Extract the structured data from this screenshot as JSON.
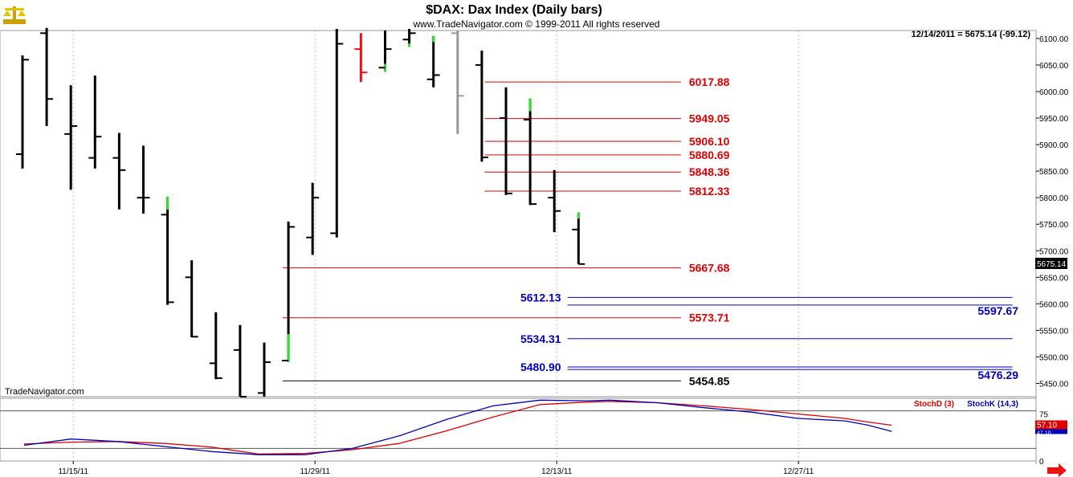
{
  "header": {
    "title": "$DAX:  Dax Index  (Daily bars)",
    "subtitle": "www.TradeNavigator.com © 1999-2011 All rights reserved",
    "info": "12/14/2011 = 5675.14 (-99.12)",
    "watermark": "TradeNavigator.com"
  },
  "colors": {
    "up": "#33dd33",
    "down": "#ee1111",
    "bar": "#000000",
    "pending": "#999999",
    "red_level": "#dd0000",
    "blue_level": "#0000bb",
    "black_level": "#000000"
  },
  "chart_data": [
    {
      "type": "ohlc",
      "y_ticks": [
        "6100.00",
        "6050.00",
        "6000.00",
        "5950.00",
        "5900.00",
        "5850.00",
        "5800.00",
        "5750.00",
        "5700.00",
        "5650.00",
        "5600.00",
        "5550.00",
        "5500.00",
        "5450.00"
      ],
      "ylim": [
        5425,
        6115
      ],
      "x_ticks": [
        "11/15/11",
        "11/29/11",
        "12/13/11",
        "12/27/11"
      ],
      "last_price_label": "5675.14",
      "bars": [
        {
          "o": 5882,
          "h": 6068,
          "l": 5855,
          "c": 6060,
          "color": "bar"
        },
        {
          "o": 6110,
          "h": 6120,
          "l": 5935,
          "c": 5986,
          "color": "bar"
        },
        {
          "o": 5920,
          "h": 6012,
          "l": 5815,
          "c": 5935,
          "color": "bar"
        },
        {
          "o": 5875,
          "h": 6030,
          "l": 5855,
          "c": 5915,
          "color": "bar"
        },
        {
          "o": 5875,
          "h": 5922,
          "l": 5778,
          "c": 5852,
          "color": "bar"
        },
        {
          "o": 5800,
          "h": 5898,
          "l": 5770,
          "c": 5800,
          "color": "bar"
        },
        {
          "o": 5768,
          "h": 5802,
          "l": 5598,
          "c": 5603,
          "color": "bar",
          "h_color": "up"
        },
        {
          "o": 5650,
          "h": 5682,
          "l": 5537,
          "c": 5538,
          "color": "bar"
        },
        {
          "o": 5488,
          "h": 5584,
          "l": 5458,
          "c": 5460,
          "color": "bar"
        },
        {
          "o": 5513,
          "h": 5560,
          "l": 5425,
          "c": 5425,
          "color": "bar"
        },
        {
          "o": 5432,
          "h": 5527,
          "l": 5425,
          "c": 5490,
          "color": "bar"
        },
        {
          "o": 5493,
          "h": 5755,
          "l": 5490,
          "c": 5745,
          "color": "bar",
          "l_color": "up"
        },
        {
          "o": 5725,
          "h": 5828,
          "l": 5692,
          "c": 5800,
          "color": "bar"
        },
        {
          "o": 5733,
          "h": 6118,
          "l": 5725,
          "c": 6090,
          "color": "bar"
        },
        {
          "o": 6080,
          "h": 6110,
          "l": 6018,
          "c": 6036,
          "color": "down"
        },
        {
          "o": 6045,
          "h": 6115,
          "l": 6037,
          "c": 6080,
          "color": "bar",
          "l_color": "up"
        },
        {
          "o": 6098,
          "h": 6118,
          "l": 6084,
          "c": 6110,
          "color": "bar",
          "l_color": "up"
        },
        {
          "o": 6023,
          "h": 6105,
          "l": 6008,
          "c": 6031,
          "color": "bar",
          "h_color": "up"
        },
        {
          "o": 6110,
          "h": 6115,
          "l": 5920,
          "c": 5992,
          "color": "pending"
        },
        {
          "o": 6050,
          "h": 6077,
          "l": 5868,
          "c": 5876,
          "color": "bar"
        },
        {
          "o": 5950,
          "h": 6008,
          "l": 5805,
          "c": 5808,
          "color": "bar"
        },
        {
          "o": 5947,
          "h": 5987,
          "l": 5786,
          "c": 5788,
          "color": "bar",
          "h_color": "up"
        },
        {
          "o": 5800,
          "h": 5852,
          "l": 5735,
          "c": 5775,
          "color": "bar"
        },
        {
          "o": 5740,
          "h": 5772,
          "l": 5675,
          "c": 5675,
          "color": "bar",
          "h_color": "up"
        }
      ],
      "levels": [
        {
          "value": 6017.88,
          "label": "6017.88",
          "color": "red_level",
          "x1": 0.46,
          "x2": 0.665,
          "label_at": "end"
        },
        {
          "value": 5949.05,
          "label": "5949.05",
          "color": "red_level",
          "x1": 0.46,
          "x2": 0.665,
          "label_at": "end"
        },
        {
          "value": 5906.1,
          "label": "5906.10",
          "color": "red_level",
          "x1": 0.46,
          "x2": 0.665,
          "label_at": "end"
        },
        {
          "value": 5880.69,
          "label": "5880.69",
          "color": "red_level",
          "x1": 0.46,
          "x2": 0.665,
          "label_at": "end"
        },
        {
          "value": 5848.36,
          "label": "5848.36",
          "color": "red_level",
          "x1": 0.46,
          "x2": 0.665,
          "label_at": "end"
        },
        {
          "value": 5812.33,
          "label": "5812.33",
          "color": "red_level",
          "x1": 0.46,
          "x2": 0.665,
          "label_at": "end"
        },
        {
          "value": 5667.68,
          "label": "5667.68",
          "color": "red_level",
          "x1": 0.265,
          "x2": 0.665,
          "label_at": "end"
        },
        {
          "value": 5612.13,
          "label": "5612.13",
          "color": "blue_level",
          "x1": 0.54,
          "x2": 0.985,
          "label_at": "start"
        },
        {
          "value": 5597.67,
          "label": "5597.67",
          "color": "blue_level",
          "x1": 0.54,
          "x2": 0.985,
          "label_at": "end"
        },
        {
          "value": 5573.71,
          "label": "5573.71",
          "color": "red_level",
          "x1": 0.265,
          "x2": 0.665,
          "label_at": "end"
        },
        {
          "value": 5534.31,
          "label": "5534.31",
          "color": "blue_level",
          "x1": 0.54,
          "x2": 0.985,
          "label_at": "start"
        },
        {
          "value": 5480.9,
          "label": "5480.90",
          "color": "blue_level",
          "x1": 0.54,
          "x2": 0.985,
          "label_at": "start"
        },
        {
          "value": 5476.29,
          "label": "5476.29",
          "color": "blue_level",
          "x1": 0.54,
          "x2": 0.985,
          "label_at": "end"
        },
        {
          "value": 5454.85,
          "label": "5454.85",
          "color": "black_level",
          "x1": 0.265,
          "x2": 0.665,
          "label_at": "end"
        }
      ]
    },
    {
      "type": "line",
      "legend": [
        "StochD (3)",
        "StochK (14,3)"
      ],
      "legend_colors": [
        "#dd0000",
        "#0000bb"
      ],
      "ylim": [
        0,
        100
      ],
      "y_ticks": [
        "75",
        "0"
      ],
      "guide_lines": [
        80,
        20
      ],
      "last_labels": [
        "57.10",
        "47.10"
      ],
      "series": [
        {
          "name": "StochD (3)",
          "color": "#dd0000",
          "values": [
            [
              0,
              27
            ],
            [
              2,
              30
            ],
            [
              4,
              31
            ],
            [
              6,
              28
            ],
            [
              8,
              22
            ],
            [
              10,
              11
            ],
            [
              12,
              12
            ],
            [
              14,
              18
            ],
            [
              16,
              28
            ],
            [
              18,
              48
            ],
            [
              20,
              70
            ],
            [
              22,
              90
            ],
            [
              24,
              94
            ],
            [
              25,
              95
            ],
            [
              27,
              93
            ],
            [
              29,
              88
            ],
            [
              31,
              82
            ],
            [
              33,
              75
            ],
            [
              35,
              68
            ],
            [
              36,
              62
            ],
            [
              37,
              57
            ]
          ]
        },
        {
          "name": "StochK (14,3)",
          "color": "#0000bb",
          "values": [
            [
              0,
              25
            ],
            [
              2,
              35
            ],
            [
              4,
              31
            ],
            [
              6,
              23
            ],
            [
              8,
              15
            ],
            [
              10,
              10
            ],
            [
              12,
              10
            ],
            [
              14,
              20
            ],
            [
              16,
              40
            ],
            [
              18,
              66
            ],
            [
              20,
              88
            ],
            [
              22,
              97
            ],
            [
              24,
              96
            ],
            [
              25,
              97
            ],
            [
              27,
              93
            ],
            [
              29,
              85
            ],
            [
              31,
              78
            ],
            [
              33,
              68
            ],
            [
              35,
              64
            ],
            [
              36,
              57
            ],
            [
              37,
              47
            ]
          ]
        }
      ]
    }
  ]
}
